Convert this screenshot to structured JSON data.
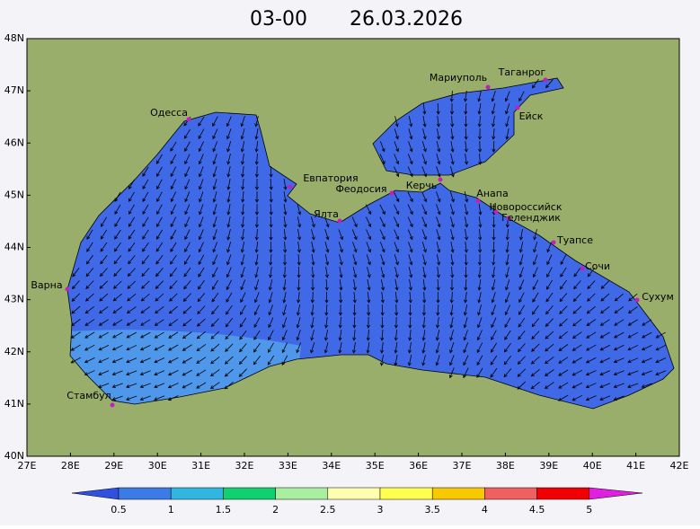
{
  "header": {
    "time": "03-00",
    "date": "26.03.2026"
  },
  "axes": {
    "lon": [
      "27E",
      "28E",
      "29E",
      "30E",
      "31E",
      "32E",
      "33E",
      "34E",
      "35E",
      "36E",
      "37E",
      "38E",
      "39E",
      "40E",
      "41E",
      "42E"
    ],
    "lat": [
      "48N",
      "47N",
      "46N",
      "45N",
      "44N",
      "43N",
      "42N",
      "41N",
      "40N"
    ]
  },
  "cities": [
    "Одесса",
    "Мариуполь",
    "Таганрог",
    "Ейск",
    "Евпатория",
    "Феодосия",
    "Керчь",
    "Анапа",
    "Новороссийск",
    "Геленджик",
    "Ялта",
    "Туапсе",
    "Сочи",
    "Сухум",
    "Варна",
    "Стамбул"
  ],
  "legend": {
    "labels": [
      "0.5",
      "1",
      "1.5",
      "2",
      "2.5",
      "3",
      "3.5",
      "4",
      "4.5",
      "5"
    ]
  }
}
